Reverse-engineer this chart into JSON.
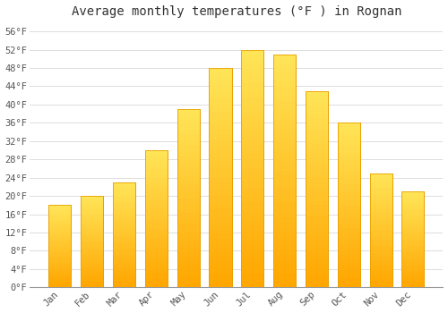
{
  "title": "Average monthly temperatures (°F ) in Rognan",
  "months": [
    "Jan",
    "Feb",
    "Mar",
    "Apr",
    "May",
    "Jun",
    "Jul",
    "Aug",
    "Sep",
    "Oct",
    "Nov",
    "Dec"
  ],
  "values": [
    18,
    20,
    23,
    30,
    39,
    48,
    52,
    51,
    43,
    36,
    25,
    21
  ],
  "bar_color_bottom": "#FFA500",
  "bar_color_top": "#FFD966",
  "bar_edge_color": "#E8A000",
  "background_color": "#FFFFFF",
  "grid_color": "#DDDDDD",
  "ylim": [
    0,
    58
  ],
  "yticks": [
    0,
    4,
    8,
    12,
    16,
    20,
    24,
    28,
    32,
    36,
    40,
    44,
    48,
    52,
    56
  ],
  "ytick_labels": [
    "0°F",
    "4°F",
    "8°F",
    "12°F",
    "16°F",
    "20°F",
    "24°F",
    "28°F",
    "32°F",
    "36°F",
    "40°F",
    "44°F",
    "48°F",
    "52°F",
    "56°F"
  ],
  "title_fontsize": 10,
  "tick_fontsize": 7.5,
  "font_family": "monospace"
}
